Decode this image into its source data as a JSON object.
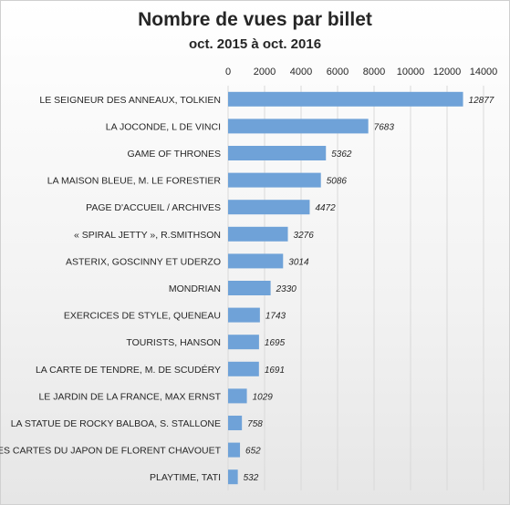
{
  "chart_data": {
    "type": "bar",
    "orientation": "horizontal",
    "title": "Nombre de vues par billet",
    "subtitle": "oct. 2015 à oct. 2016",
    "xlabel": "",
    "ylabel": "",
    "xlim": [
      0,
      14000
    ],
    "ticks": [
      0,
      2000,
      4000,
      6000,
      8000,
      10000,
      12000,
      14000
    ],
    "tick_position": "top",
    "grid": true,
    "legend": "none",
    "bar_color": "#6fa2d8",
    "categories": [
      "LE SEIGNEUR DES ANNEAUX, TOLKIEN",
      "LA JOCONDE, L DE VINCI",
      "GAME OF THRONES",
      "LA MAISON BLEUE, M. LE FORESTIER",
      "PAGE D'ACCUEIL / ARCHIVES",
      "« SPIRAL JETTY », R.SMITHSON",
      "ASTERIX, GOSCINNY ET UDERZO",
      "MONDRIAN",
      "EXERCICES DE STYLE, QUENEAU",
      "TOURISTS, HANSON",
      "LA CARTE DE TENDRE, M. DE SCUDÉRY",
      "LE JARDIN DE LA FRANCE, MAX ERNST",
      "LA STATUE DE ROCKY BALBOA, S. STALLONE",
      "LES CARTES DU JAPON DE FLORENT CHAVOUET",
      "PLAYTIME,  TATI"
    ],
    "values": [
      12877,
      7683,
      5362,
      5086,
      4472,
      3276,
      3014,
      2330,
      1743,
      1695,
      1691,
      1029,
      758,
      652,
      532
    ]
  }
}
